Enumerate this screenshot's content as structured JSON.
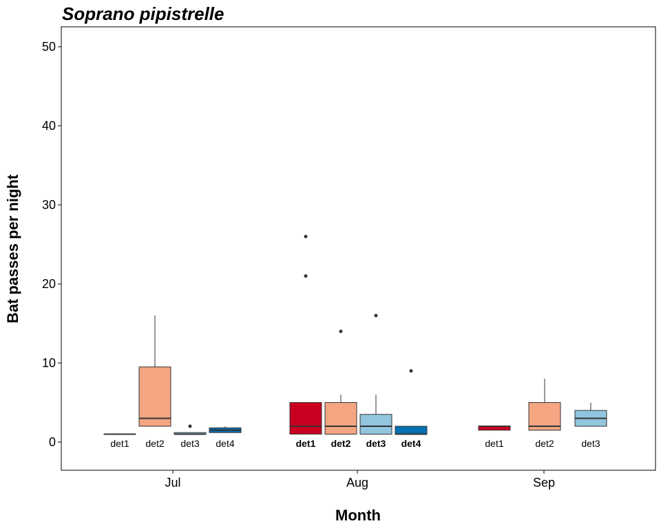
{
  "chart_data": {
    "type": "box",
    "title": "Soprano pipistrelle",
    "xlabel": "Month",
    "ylabel": "Bat passes per night",
    "ylim": [
      -3.5,
      52.5
    ],
    "yticks": [
      0,
      10,
      20,
      30,
      40,
      50
    ],
    "grid": false,
    "legend": "none",
    "categories": [
      "Jul",
      "Aug",
      "Sep"
    ],
    "colors": {
      "det1": "#ca0020",
      "det2": "#f4a582",
      "det3": "#92c5de",
      "det4": "#0571b0"
    },
    "groups": [
      {
        "month": "Jul",
        "boxes": [
          {
            "detector": "det1",
            "label": "det1",
            "min": 1,
            "q1": 1,
            "median": 1,
            "q3": 1,
            "max": 1,
            "outliers": []
          },
          {
            "detector": "det2",
            "label": "det2",
            "min": 2,
            "q1": 2,
            "median": 3,
            "q3": 9.5,
            "max": 16,
            "outliers": []
          },
          {
            "detector": "det3",
            "label": "det3",
            "min": 1,
            "q1": 1,
            "median": 1,
            "q3": 1.2,
            "max": 1.2,
            "outliers": [
              2
            ]
          },
          {
            "detector": "det4",
            "label": "det4",
            "min": 1.2,
            "q1": 1.2,
            "median": 1.5,
            "q3": 1.8,
            "max": 2,
            "outliers": []
          }
        ]
      },
      {
        "month": "Aug",
        "boxes": [
          {
            "detector": "det1",
            "label": "det1",
            "min": 1,
            "q1": 1,
            "median": 2,
            "q3": 5,
            "max": 5,
            "outliers": [
              21,
              26
            ]
          },
          {
            "detector": "det2",
            "label": "det2",
            "min": 1,
            "q1": 1,
            "median": 2,
            "q3": 5,
            "max": 6,
            "outliers": [
              14
            ]
          },
          {
            "detector": "det3",
            "label": "det3",
            "min": 1,
            "q1": 1,
            "median": 2,
            "q3": 3.5,
            "max": 6,
            "outliers": [
              16
            ]
          },
          {
            "detector": "det4",
            "label": "det4",
            "min": 1,
            "q1": 1,
            "median": 1,
            "q3": 2,
            "max": 2,
            "outliers": [
              9
            ]
          }
        ]
      },
      {
        "month": "Sep",
        "boxes": [
          {
            "detector": "det1",
            "label": "det1",
            "min": 1.5,
            "q1": 1.5,
            "median": 2,
            "q3": 2,
            "max": 2,
            "outliers": []
          },
          {
            "detector": "det2",
            "label": "det2",
            "min": 1.5,
            "q1": 1.5,
            "median": 2,
            "q3": 5,
            "max": 8,
            "outliers": []
          },
          {
            "detector": "det3",
            "label": "det3",
            "min": 2,
            "q1": 2,
            "median": 3,
            "q3": 4,
            "max": 5,
            "outliers": []
          }
        ]
      }
    ]
  }
}
